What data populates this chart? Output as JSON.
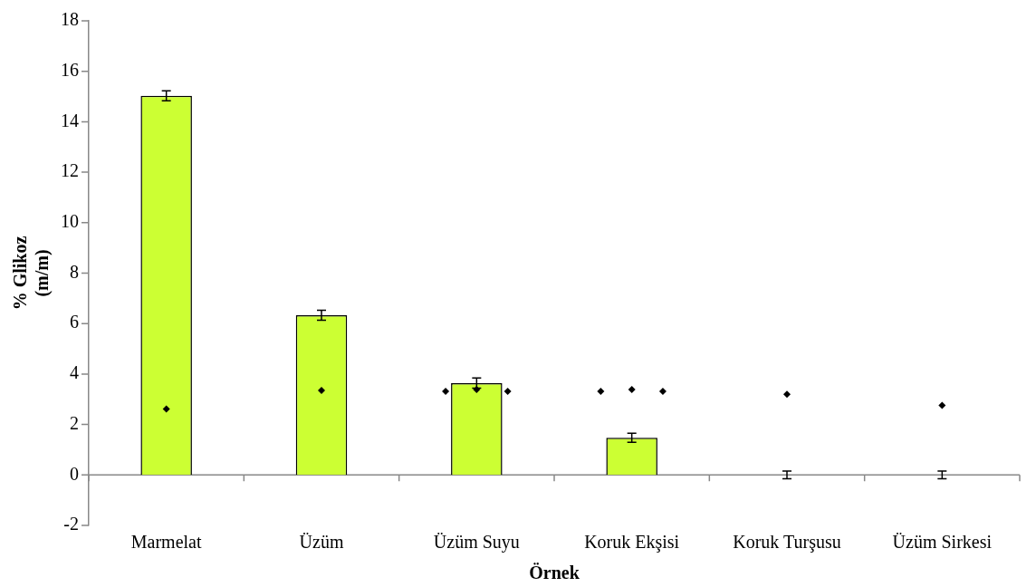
{
  "chart_data": {
    "type": "bar",
    "xlabel": "Örnek",
    "ylabel": "% Glikoz\n(m/m)",
    "categories": [
      "Marmelat",
      "Üzüm",
      "Üzüm Suyu",
      "Koruk Ekşisi",
      "Koruk Turşusu",
      "Üzüm Sirkesi"
    ],
    "ylim": [
      -2,
      18
    ],
    "yticks": [
      -2,
      0,
      2,
      4,
      6,
      8,
      10,
      12,
      14,
      16,
      18
    ],
    "legend": false,
    "series": [
      {
        "color": "#ccff33",
        "values": [
          15.03,
          6.33,
          3.64,
          1.47,
          0,
          0
        ],
        "errors": [
          0.2,
          0.2,
          0.2,
          0.18,
          0.15,
          0.15
        ]
      },
      {
        "type": "scatter",
        "color": "#000000",
        "marker": "diamond",
        "x": [
          "Üzüm Suyu",
          "Koruk Ekşisi"
        ],
        "values": [
          3.31,
          3.31
        ]
      },
      {
        "type": "scatter",
        "color": "#000000",
        "marker": "diamond",
        "x": [
          "Marmelat",
          "Üzüm",
          "Üzüm Suyu",
          "Koruk Ekşisi",
          "Koruk Turşusu",
          "Üzüm Sirkesi"
        ],
        "values": [
          2.61,
          3.35,
          3.39,
          3.39,
          3.2,
          2.76
        ]
      },
      {
        "type": "scatter",
        "color": "#000000",
        "marker": "diamond",
        "x": [
          "Üzüm Suyu",
          "Koruk Ekşisi"
        ],
        "values": [
          3.31,
          3.31
        ]
      }
    ]
  }
}
